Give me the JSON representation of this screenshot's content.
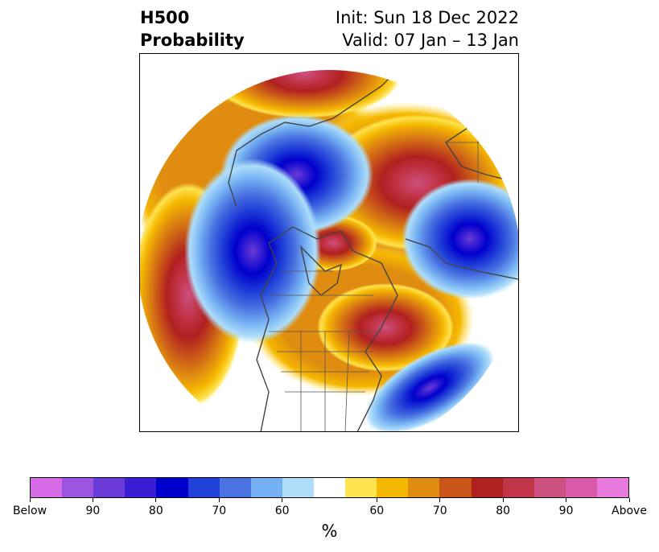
{
  "header": {
    "title_line1": "H500",
    "title_line2": "Probability",
    "init_text": "Init: Sun 18 Dec 2022",
    "valid_text": "Valid: 07 Jan – 13 Jan"
  },
  "map": {
    "projection": "north-polar-stereographic",
    "features": [
      "coastlines",
      "country-borders",
      "state-province-borders"
    ]
  },
  "colorbar": {
    "colors": [
      "#d66de6",
      "#9b55e0",
      "#6a3bd8",
      "#3a1ed4",
      "#0000cc",
      "#2040d8",
      "#4a72e0",
      "#74b0f2",
      "#aeddfa",
      "#ffffff",
      "#ffe34f",
      "#f5b800",
      "#e08c10",
      "#c95518",
      "#b02020",
      "#c23448",
      "#cc5080",
      "#d95aa8",
      "#e87ade"
    ],
    "tick_labels": [
      "Below",
      "90",
      "80",
      "70",
      "60",
      "60",
      "70",
      "80",
      "90",
      "Above"
    ],
    "unit": "%"
  }
}
